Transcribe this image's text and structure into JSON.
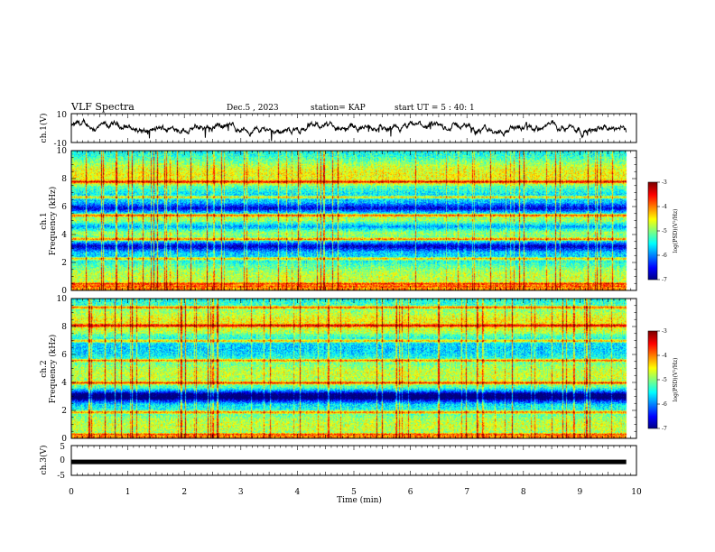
{
  "header": {
    "title": "VLF Spectra",
    "date": "Dec.5 , 2023",
    "station": "station= KAP",
    "start_ut": "start UT =  5 : 40: 1"
  },
  "chart_data": [
    {
      "type": "line",
      "name": "waveform-ch1",
      "ylabel": "ch.1(V)",
      "ylim": [
        -10,
        10
      ],
      "y_ticks": [
        "10",
        "-10"
      ],
      "xlim": [
        0,
        10
      ]
    },
    {
      "type": "heatmap",
      "name": "spectrogram-ch1",
      "ylabel": "Frequency (kHz)",
      "ylabel2": "ch.1",
      "ylim": [
        0,
        10
      ],
      "y_ticks": [
        0,
        2,
        4,
        6,
        8,
        10
      ],
      "xlim": [
        0,
        10
      ],
      "data_end_min": 9.82,
      "high_bands_khz": [
        0.1,
        0.3,
        0.5,
        2.3,
        3.7,
        5.4,
        6.7,
        7.8
      ],
      "low_bands_khz": [
        3.2,
        4.6,
        5.9
      ],
      "colorbar": {
        "label": "log(PSD)(V²/Hz)",
        "ticks": [
          "-3",
          "-4",
          "-5",
          "-6",
          "-7"
        ],
        "range": [
          -7,
          -3
        ]
      }
    },
    {
      "type": "heatmap",
      "name": "spectrogram-ch2",
      "ylabel": "Frequency (kHz)",
      "ylabel2": "ch.2",
      "ylim": [
        0,
        10
      ],
      "y_ticks": [
        0,
        2,
        4,
        6,
        8,
        10
      ],
      "xlim": [
        0,
        10
      ],
      "data_end_min": 9.82,
      "high_bands_khz": [
        0.1,
        0.3,
        1.9,
        4.0,
        5.6,
        7.0,
        8.1,
        9.4
      ],
      "low_bands_khz": [
        2.9,
        3.2
      ],
      "colorbar": {
        "label": "log(PSD)(V²/Hz)",
        "ticks": [
          "-3",
          "-4",
          "-5",
          "-6",
          "-7"
        ],
        "range": [
          -7,
          -3
        ]
      }
    },
    {
      "type": "line",
      "name": "level-ch3",
      "ylabel": "ch.3(V)",
      "ylim": [
        -5,
        5
      ],
      "y_ticks": [
        "5",
        "0",
        "-5"
      ],
      "xlim": [
        0,
        10
      ],
      "value": -0.5,
      "data_end_min": 9.82
    }
  ],
  "xaxis": {
    "label": "Time  (min)",
    "ticks": [
      "0",
      "1",
      "2",
      "3",
      "4",
      "5",
      "6",
      "7",
      "8",
      "9",
      "10"
    ]
  },
  "colors": {
    "axes": "#000000",
    "trace": "#000000"
  }
}
